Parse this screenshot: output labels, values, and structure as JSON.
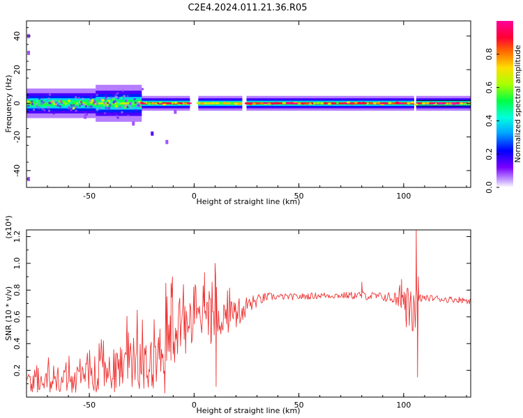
{
  "title": "C2E4.2024.011.21.36.R05",
  "chart_data": [
    {
      "type": "heatmap",
      "xlabel": "Height of straight line (km)",
      "ylabel": "Frequency (Hz)",
      "xlim": [
        -80,
        132
      ],
      "ylim": [
        -50,
        49
      ],
      "xticks": [
        -50,
        0,
        50,
        100
      ],
      "yticks": [
        -40,
        -20,
        0,
        20,
        40
      ],
      "colorbar": {
        "label": "Normalized spectral amplitude",
        "ticks": [
          0.0,
          0.2,
          0.4,
          0.6,
          0.8
        ],
        "range": [
          0,
          1
        ],
        "colormap": "rainbow (purple-blue-cyan-green-yellow-red-magenta)"
      },
      "bands": [
        {
          "x_start": -80,
          "x_end": -47,
          "half_width_hz": 4,
          "peak_amp": 0.55,
          "scatter": true
        },
        {
          "x_start": -47,
          "x_end": -25,
          "half_width_hz": 5,
          "peak_amp": 0.65,
          "scatter": true
        },
        {
          "x_start": -25,
          "x_end": -2,
          "half_width_hz": 2,
          "peak_amp": 0.9,
          "scatter": false
        },
        {
          "x_start": 2,
          "x_end": 23,
          "half_width_hz": 2,
          "peak_amp": 0.75,
          "scatter": false
        },
        {
          "x_start": 25,
          "x_end": 105,
          "half_width_hz": 2,
          "peak_amp": 0.95,
          "scatter": false
        },
        {
          "x_start": 106,
          "x_end": 132,
          "half_width_hz": 2,
          "peak_amp": 1.0,
          "scatter": false
        }
      ],
      "outliers": [
        {
          "x": -79,
          "y": 40
        },
        {
          "x": -79,
          "y": 30
        },
        {
          "x": -79,
          "y": -45
        },
        {
          "x": -20,
          "y": -18
        },
        {
          "x": -13,
          "y": -23
        },
        {
          "x": -29,
          "y": -12
        },
        {
          "x": -52,
          "y": -8
        },
        {
          "x": -9,
          "y": -5
        }
      ]
    },
    {
      "type": "line",
      "xlabel": "Height of straight line (km)",
      "ylabel": "SNR (10 * v/v)",
      "yscale_label": "(x10⁴)",
      "xlim": [
        -80,
        132
      ],
      "ylim": [
        0,
        1.25
      ],
      "xticks": [
        -50,
        0,
        50,
        100
      ],
      "yticks": [
        0.2,
        0.4,
        0.6,
        0.8,
        1.0,
        1.2
      ],
      "series": [
        {
          "color": "#ee3333",
          "x": [
            -80,
            -70,
            -60,
            -50,
            -40,
            -30,
            -20,
            -15,
            -13,
            -10,
            -5,
            0,
            5,
            8,
            10,
            12,
            15,
            20,
            25,
            30,
            35,
            40,
            50,
            60,
            70,
            80,
            90,
            95,
            100,
            103,
            105,
            107,
            108,
            110,
            115,
            120,
            125,
            132
          ],
          "values": [
            0.1,
            0.12,
            0.13,
            0.13,
            0.18,
            0.25,
            0.3,
            0.35,
            0.4,
            0.45,
            0.5,
            0.52,
            0.55,
            0.55,
            0.6,
            0.6,
            0.6,
            0.62,
            0.68,
            0.72,
            0.75,
            0.75,
            0.75,
            0.76,
            0.76,
            0.76,
            0.75,
            0.74,
            0.7,
            0.65,
            0.6,
            0.7,
            0.74,
            0.74,
            0.74,
            0.73,
            0.73,
            0.72
          ],
          "noise": [
            0.06,
            0.06,
            0.06,
            0.07,
            0.1,
            0.12,
            0.15,
            0.15,
            0.16,
            0.15,
            0.13,
            0.1,
            0.1,
            0.1,
            0.1,
            0.09,
            0.08,
            0.07,
            0.05,
            0.03,
            0.02,
            0.015,
            0.015,
            0.015,
            0.015,
            0.02,
            0.02,
            0.03,
            0.08,
            0.12,
            0.1,
            0.04,
            0.02,
            0.015,
            0.015,
            0.015,
            0.015,
            0.015
          ]
        }
      ],
      "spikes": [
        {
          "x": -14,
          "y": 0.03
        },
        {
          "x": -11,
          "y": 0.85
        },
        {
          "x": -13,
          "y": 0.75
        },
        {
          "x": 5,
          "y": 0.93
        },
        {
          "x": 8,
          "y": 0.4
        },
        {
          "x": 10,
          "y": 1.0
        },
        {
          "x": 10.5,
          "y": 0.08
        },
        {
          "x": 80,
          "y": 0.86
        },
        {
          "x": 99,
          "y": 0.88
        },
        {
          "x": 101,
          "y": 0.6
        },
        {
          "x": 106,
          "y": 1.25
        },
        {
          "x": 106.6,
          "y": 0.15
        },
        {
          "x": 107,
          "y": 0.9
        }
      ]
    }
  ]
}
